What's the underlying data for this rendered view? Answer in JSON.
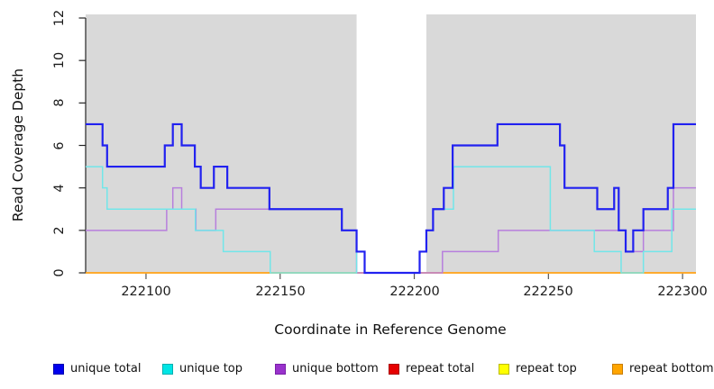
{
  "figure": {
    "background": "#FFFFFF",
    "plot_area_background": "#D9D9D9"
  },
  "chart_data": {
    "type": "line",
    "subtype": "step",
    "title": "",
    "xlabel": "Coordinate in Reference Genome",
    "ylabel": "Read Coverage Depth",
    "xlim": [
      222077.5,
      222305
    ],
    "ylim": [
      0,
      12
    ],
    "x_ticks": [
      222100,
      222150,
      222200,
      222250,
      222300
    ],
    "x_tick_labels": [
      "222100",
      "222150",
      "222200",
      "222250",
      "222300"
    ],
    "y_ticks": [
      0,
      2,
      4,
      6,
      8,
      10,
      12
    ],
    "y_tick_labels": [
      "0",
      "2",
      "4",
      "6",
      "8",
      "10",
      "12"
    ],
    "grid": false,
    "legend_position": "bottom",
    "plot_background": "#D9D9D9",
    "gap_region": {
      "x_start": 222178.5,
      "x_end": 222204.5,
      "color": "#FFFFFF"
    },
    "draw_order": [
      3,
      4,
      5,
      2,
      1,
      0
    ],
    "series": [
      {
        "id": "unique-total",
        "legend_label": "unique total",
        "color": "#0000EE",
        "border_color": "#0000B0",
        "line_color": "#2121F0",
        "line_width": 2.2,
        "steps": [
          [
            222077.5,
            7
          ],
          [
            222083.8,
            6
          ],
          [
            222085.5,
            5
          ],
          [
            222107,
            6
          ],
          [
            222110,
            7
          ],
          [
            222113.3,
            6
          ],
          [
            222118.2,
            5
          ],
          [
            222120.4,
            4
          ],
          [
            222125.3,
            5
          ],
          [
            222130.3,
            4
          ],
          [
            222146,
            3
          ],
          [
            222173,
            2
          ],
          [
            222178.5,
            1
          ],
          [
            222181.5,
            0
          ],
          [
            222202,
            1
          ],
          [
            222204.5,
            2
          ],
          [
            222207,
            3
          ],
          [
            222211,
            4
          ],
          [
            222214.3,
            6
          ],
          [
            222231,
            7
          ],
          [
            222254.3,
            6
          ],
          [
            222256,
            4
          ],
          [
            222268.2,
            3
          ],
          [
            222274.5,
            4
          ],
          [
            222276.2,
            2
          ],
          [
            222278.8,
            1
          ],
          [
            222281.6,
            2
          ],
          [
            222285.4,
            3
          ],
          [
            222294.5,
            4
          ],
          [
            222296.6,
            7
          ]
        ]
      },
      {
        "id": "unique-top",
        "legend_label": "unique top",
        "color": "#00E5E5",
        "border_color": "#00AFAF",
        "line_color": "#72E6E9",
        "line_width": 1.5,
        "steps": [
          [
            222077.5,
            5
          ],
          [
            222083.8,
            4
          ],
          [
            222085.5,
            3
          ],
          [
            222118.4,
            2
          ],
          [
            222128.8,
            1
          ],
          [
            222146.3,
            0
          ],
          [
            222178.5,
            1
          ],
          [
            222181.5,
            0
          ],
          [
            222202,
            1
          ],
          [
            222204.5,
            2
          ],
          [
            222207,
            3
          ],
          [
            222214.6,
            5
          ],
          [
            222250.7,
            2
          ],
          [
            222267.1,
            1
          ],
          [
            222277.1,
            0
          ],
          [
            222285.4,
            1
          ],
          [
            222296,
            3
          ]
        ]
      },
      {
        "id": "unique-bottom",
        "legend_label": "unique bottom",
        "color": "#9932CC",
        "border_color": "#7A1FA8",
        "line_color": "#B77FDD",
        "line_width": 1.5,
        "steps": [
          [
            222077.5,
            2
          ],
          [
            222107.7,
            3
          ],
          [
            222110,
            4
          ],
          [
            222113.3,
            3
          ],
          [
            222118.6,
            2
          ],
          [
            222126,
            3
          ],
          [
            222173,
            2
          ],
          [
            222178.5,
            0
          ],
          [
            222210.5,
            1
          ],
          [
            222231.3,
            2
          ],
          [
            222278.8,
            1
          ],
          [
            222285.4,
            2
          ],
          [
            222296.6,
            4
          ]
        ]
      },
      {
        "id": "repeat-total",
        "legend_label": "repeat total",
        "color": "#E60000",
        "border_color": "#AA0000",
        "line_color": "#E64545",
        "line_width": 1.2,
        "steps": [
          [
            222077.5,
            0
          ]
        ]
      },
      {
        "id": "repeat-top",
        "legend_label": "repeat top",
        "color": "#FFFF00",
        "border_color": "#BBBB00",
        "line_color": "#FFFF30",
        "line_width": 1.2,
        "steps": [
          [
            222077.5,
            0
          ]
        ]
      },
      {
        "id": "repeat-bottom",
        "legend_label": "repeat bottom",
        "color": "#FFA500",
        "border_color": "#C87D00",
        "line_color": "#FFA520",
        "line_width": 1.8,
        "steps": [
          [
            222077.5,
            0
          ]
        ]
      }
    ]
  },
  "legend": {
    "item_x_positions": [
      59,
      180,
      305,
      431,
      553,
      679
    ]
  }
}
